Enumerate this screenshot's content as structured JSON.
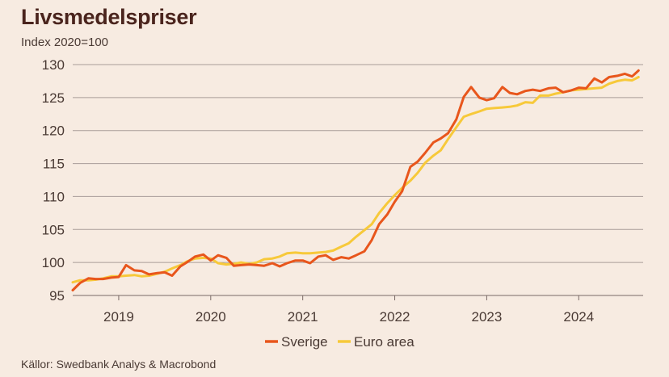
{
  "chart_data": {
    "type": "line",
    "title": "Livsmedelspriser",
    "ylabel": "Index 2020=100",
    "xlabel": "",
    "source": "Källor: Swedbank Analys & Macrobond",
    "ylim": [
      95,
      130
    ],
    "yticks": [
      95,
      100,
      105,
      110,
      115,
      120,
      125,
      130
    ],
    "xlim": [
      2018.5,
      2024.7
    ],
    "xticks": [
      {
        "label": "2019",
        "x": 2019.0
      },
      {
        "label": "2020",
        "x": 2020.0
      },
      {
        "label": "2021",
        "x": 2021.0
      },
      {
        "label": "2022",
        "x": 2022.0
      },
      {
        "label": "2023",
        "x": 2023.0
      },
      {
        "label": "2024",
        "x": 2024.0
      }
    ],
    "grid": true,
    "legend": "bottom",
    "series": [
      {
        "name": "Sverige",
        "color": "#e8561c",
        "x": [
          2018.5,
          2018.58,
          2018.67,
          2018.75,
          2018.83,
          2018.92,
          2019.0,
          2019.08,
          2019.17,
          2019.25,
          2019.33,
          2019.42,
          2019.5,
          2019.58,
          2019.67,
          2019.75,
          2019.83,
          2019.92,
          2020.0,
          2020.08,
          2020.17,
          2020.25,
          2020.33,
          2020.42,
          2020.5,
          2020.58,
          2020.67,
          2020.75,
          2020.83,
          2020.92,
          2021.0,
          2021.08,
          2021.17,
          2021.25,
          2021.33,
          2021.42,
          2021.5,
          2021.58,
          2021.67,
          2021.75,
          2021.83,
          2021.92,
          2022.0,
          2022.08,
          2022.17,
          2022.25,
          2022.33,
          2022.42,
          2022.5,
          2022.58,
          2022.67,
          2022.75,
          2022.83,
          2022.92,
          2023.0,
          2023.08,
          2023.17,
          2023.25,
          2023.33,
          2023.42,
          2023.5,
          2023.58,
          2023.67,
          2023.75,
          2023.83,
          2023.92,
          2024.0,
          2024.08,
          2024.17,
          2024.25,
          2024.33,
          2024.42,
          2024.5,
          2024.58,
          2024.65
        ],
        "values": [
          95.8,
          96.9,
          97.6,
          97.5,
          97.5,
          97.7,
          97.8,
          99.6,
          98.8,
          98.7,
          98.2,
          98.4,
          98.5,
          98.0,
          99.4,
          100.1,
          100.9,
          101.2,
          100.3,
          101.1,
          100.7,
          99.5,
          99.6,
          99.7,
          99.6,
          99.5,
          99.9,
          99.4,
          99.9,
          100.3,
          100.3,
          99.9,
          100.9,
          101.1,
          100.4,
          100.8,
          100.6,
          101.1,
          101.7,
          103.4,
          105.8,
          107.3,
          109.2,
          110.8,
          114.5,
          115.3,
          116.6,
          118.2,
          118.8,
          119.6,
          121.7,
          125.1,
          126.6,
          125.0,
          124.6,
          124.9,
          126.6,
          125.7,
          125.5,
          126.0,
          126.2,
          126.0,
          126.4,
          126.5,
          125.8,
          126.1,
          126.5,
          126.4,
          127.9,
          127.3,
          128.1,
          128.3,
          128.6,
          128.2,
          129.1
        ]
      },
      {
        "name": "Euro area",
        "color": "#f7c93a",
        "x": [
          2018.5,
          2018.58,
          2018.67,
          2018.75,
          2018.83,
          2018.92,
          2019.0,
          2019.08,
          2019.17,
          2019.25,
          2019.33,
          2019.42,
          2019.5,
          2019.58,
          2019.67,
          2019.75,
          2019.83,
          2019.92,
          2020.0,
          2020.08,
          2020.17,
          2020.25,
          2020.33,
          2020.42,
          2020.5,
          2020.58,
          2020.67,
          2020.75,
          2020.83,
          2020.92,
          2021.0,
          2021.08,
          2021.17,
          2021.25,
          2021.33,
          2021.42,
          2021.5,
          2021.58,
          2021.67,
          2021.75,
          2021.83,
          2021.92,
          2022.0,
          2022.08,
          2022.17,
          2022.25,
          2022.33,
          2022.42,
          2022.5,
          2022.58,
          2022.67,
          2022.75,
          2022.83,
          2022.92,
          2023.0,
          2023.08,
          2023.17,
          2023.25,
          2023.33,
          2023.42,
          2023.5,
          2023.58,
          2023.67,
          2023.75,
          2023.83,
          2023.92,
          2024.0,
          2024.08,
          2024.17,
          2024.25,
          2024.33,
          2024.42,
          2024.5,
          2024.58,
          2024.65
        ],
        "values": [
          97.0,
          97.3,
          97.3,
          97.4,
          97.6,
          97.9,
          97.9,
          98.0,
          98.1,
          97.9,
          98.0,
          98.3,
          98.6,
          99.1,
          99.6,
          100.2,
          100.6,
          100.7,
          100.6,
          99.9,
          99.7,
          99.8,
          100.0,
          99.8,
          100.0,
          100.5,
          100.6,
          100.9,
          101.4,
          101.5,
          101.4,
          101.4,
          101.5,
          101.6,
          101.8,
          102.4,
          102.9,
          103.9,
          104.9,
          105.8,
          107.5,
          109.0,
          110.2,
          111.3,
          112.4,
          113.6,
          115.1,
          116.2,
          117.0,
          118.7,
          120.5,
          122.1,
          122.5,
          122.9,
          123.3,
          123.4,
          123.5,
          123.6,
          123.8,
          124.3,
          124.2,
          125.3,
          125.3,
          125.6,
          125.8,
          126.1,
          126.2,
          126.3,
          126.4,
          126.5,
          127.1,
          127.5,
          127.7,
          127.6,
          128.1
        ]
      }
    ]
  }
}
